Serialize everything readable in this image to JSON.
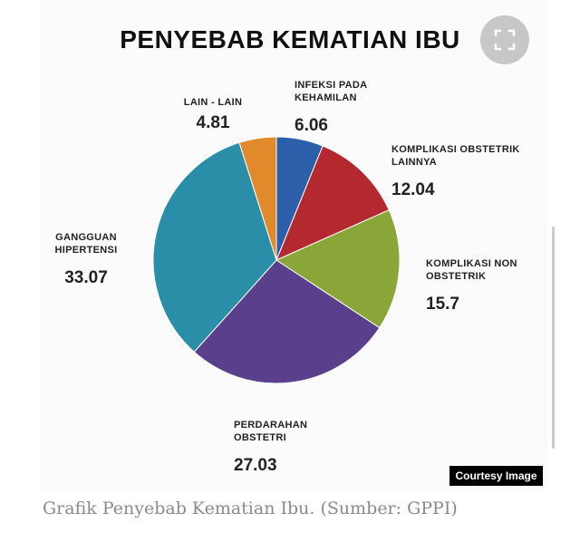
{
  "chart_data": {
    "type": "pie",
    "title": "PENYEBAB KEMATIAN IBU",
    "categories": [
      "INFEKSI PADA KEHAMILAN",
      "KOMPLIKASI OBSTETRIK LAINNYA",
      "KOMPLIKASI NON OBSTETRIK",
      "PERDARAHAN OBSTETRI",
      "GANGGUAN HIPERTENSI",
      "LAIN - LAIN"
    ],
    "values": [
      6.06,
      12.04,
      15.7,
      27.03,
      33.07,
      4.81
    ],
    "colors": [
      "#2b5fa9",
      "#b3292f",
      "#8aa538",
      "#5a3f8d",
      "#2a8ea8",
      "#e08a2b"
    ]
  },
  "badge": "Courtesy Image",
  "caption": "Grafik Penyebab Kematian Ibu. (Sumber: GPPI)"
}
